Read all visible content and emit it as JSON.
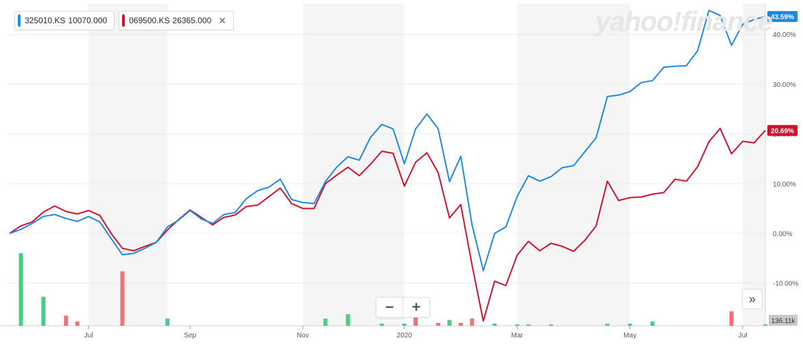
{
  "legend": [
    {
      "symbol": "325010.KS",
      "price": "10070.000",
      "color": "#1e88e5",
      "removable": false
    },
    {
      "symbol": "069500.KS",
      "price": "26365.000",
      "color": "#d0112b",
      "removable": true
    }
  ],
  "watermark": "yahoo!finance",
  "controls": {
    "zoom_out": "−",
    "zoom_in": "+",
    "expand": "»"
  },
  "chart_data": {
    "type": "line",
    "ylim": [
      -18,
      46
    ],
    "y_ticks": [
      -10,
      0,
      10,
      20,
      30,
      40
    ],
    "y_tick_labels": [
      "-10.00%",
      "0.00%",
      "10.00%",
      "20.00%",
      "30.00%",
      "40.00%"
    ],
    "x_tick_labels": [
      "Jul",
      "Sep",
      "Nov",
      "2020",
      "Mar",
      "May",
      "Jul",
      "Sep"
    ],
    "x_tick_index": [
      7,
      16,
      26,
      35,
      45,
      55,
      65,
      75
    ],
    "last_labels": [
      "43.59%",
      "20.69%"
    ],
    "volume_label": "136.11k",
    "series": [
      {
        "name": "325010.KS",
        "color": "#1e88e5",
        "values": [
          0,
          0.8,
          2,
          3.4,
          3.8,
          3,
          2.4,
          3.4,
          2.3,
          -1,
          -4.3,
          -4,
          -3,
          -1.8,
          1.3,
          2.7,
          4.6,
          2.9,
          2,
          3.8,
          4.2,
          7,
          8.6,
          9.3,
          10.9,
          6.8,
          6.2,
          6,
          10.4,
          13.3,
          15.4,
          14.7,
          19.3,
          21.9,
          21,
          14,
          21,
          24,
          21,
          10.4,
          15.5,
          1.7,
          -7.5,
          0,
          1.3,
          7.4,
          11.6,
          10.5,
          11.4,
          13.2,
          13.6,
          16.4,
          19.2,
          27.5,
          27.8,
          28.5,
          30.3,
          30.7,
          33.4,
          33.6,
          33.7,
          36.7,
          44.8,
          43.8,
          37.8,
          42,
          43,
          43.59
        ]
      },
      {
        "name": "069500.KS",
        "color": "#d0112b",
        "values": [
          0,
          1.5,
          2.3,
          4.3,
          5.5,
          4.4,
          3.9,
          4.6,
          3.6,
          0,
          -3,
          -3.5,
          -2.6,
          -1.8,
          0.7,
          2.8,
          4.7,
          3.2,
          1.7,
          3.2,
          3.7,
          5.4,
          5.7,
          7.4,
          9.1,
          6,
          5,
          5,
          10,
          11.7,
          13.3,
          11.6,
          13.9,
          16.5,
          16.1,
          9.5,
          14.3,
          16.2,
          12.2,
          3.1,
          5.8,
          -6.4,
          -17.6,
          -9.6,
          -10.5,
          -4.4,
          -1.6,
          -3.5,
          -2,
          -2.6,
          -3.6,
          -1.4,
          1.5,
          10.5,
          6.6,
          7.2,
          7.3,
          7.9,
          8.2,
          10.9,
          10.5,
          13.4,
          18.4,
          21.1,
          16,
          18.5,
          18.2,
          20.69
        ]
      }
    ],
    "volume": [
      {
        "i": 1,
        "v": 100,
        "c": "green"
      },
      {
        "i": 3,
        "v": 40,
        "c": "green"
      },
      {
        "i": 5,
        "v": 14,
        "c": "red"
      },
      {
        "i": 6,
        "v": 6,
        "c": "red"
      },
      {
        "i": 10,
        "v": 75,
        "c": "red"
      },
      {
        "i": 14,
        "v": 10,
        "c": "green"
      },
      {
        "i": 28,
        "v": 10,
        "c": "green"
      },
      {
        "i": 30,
        "v": 16,
        "c": "green"
      },
      {
        "i": 33,
        "v": 3,
        "c": "green"
      },
      {
        "i": 35,
        "v": 3,
        "c": "green"
      },
      {
        "i": 36,
        "v": 14,
        "c": "red"
      },
      {
        "i": 38,
        "v": 4,
        "c": "red"
      },
      {
        "i": 39,
        "v": 8,
        "c": "green"
      },
      {
        "i": 40,
        "v": 4,
        "c": "red"
      },
      {
        "i": 41,
        "v": 10,
        "c": "red"
      },
      {
        "i": 43,
        "v": 3,
        "c": "green"
      },
      {
        "i": 45,
        "v": 2,
        "c": "green"
      },
      {
        "i": 46,
        "v": 2,
        "c": "green"
      },
      {
        "i": 48,
        "v": 2,
        "c": "green"
      },
      {
        "i": 53,
        "v": 3,
        "c": "green"
      },
      {
        "i": 55,
        "v": 3,
        "c": "green"
      },
      {
        "i": 57,
        "v": 6,
        "c": "green"
      },
      {
        "i": 64,
        "v": 20,
        "c": "red"
      },
      {
        "i": 67,
        "v": 2,
        "c": "green"
      }
    ]
  }
}
